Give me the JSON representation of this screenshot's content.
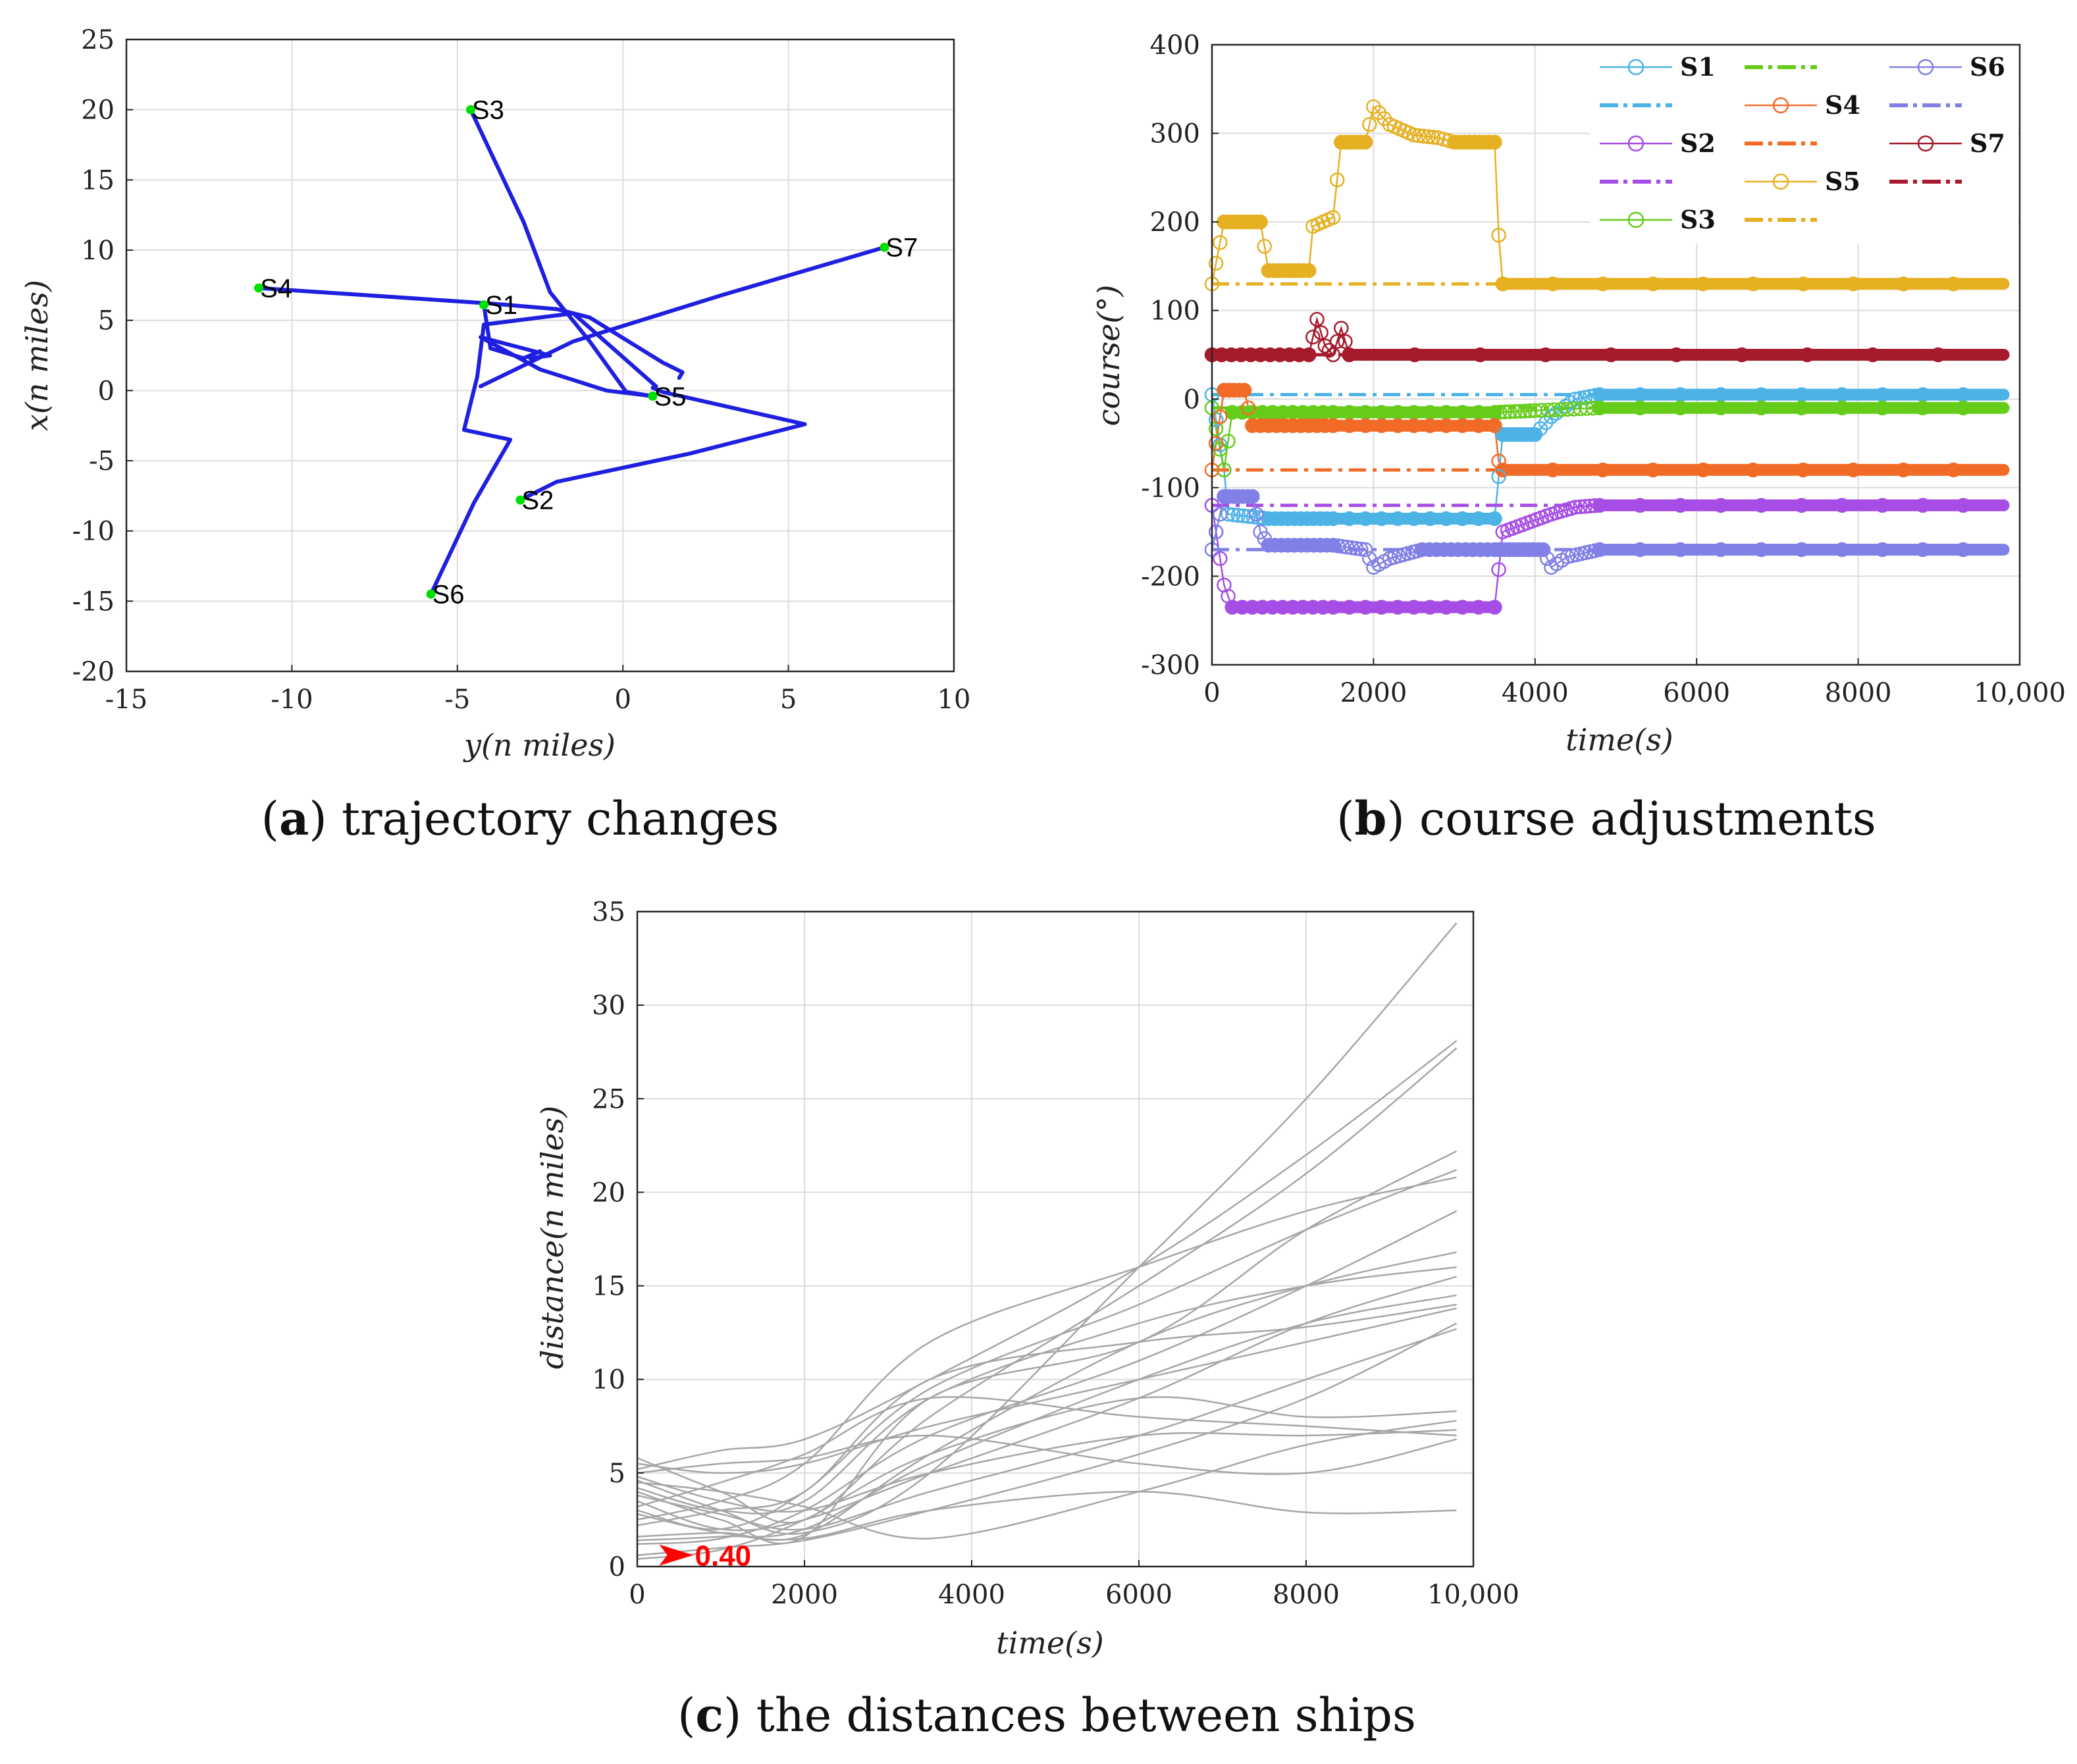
{
  "panels": {
    "a": {
      "caption_letter": "a",
      "caption_text": "trajectory changes",
      "xlabel": "y(n miles)",
      "ylabel": "x(n miles)",
      "xticks": [
        "-15",
        "-10",
        "-5",
        "0",
        "5",
        "10"
      ],
      "yticks": [
        "25",
        "20",
        "15",
        "10",
        "5",
        "0",
        "-5",
        "-10",
        "-15",
        "-20"
      ]
    },
    "b": {
      "caption_letter": "b",
      "caption_text": "course adjustments",
      "xlabel": "time(s)",
      "ylabel": "course(°)",
      "xticks": [
        "0",
        "2000",
        "4000",
        "6000",
        "8000",
        "10,000"
      ],
      "yticks": [
        "400",
        "300",
        "200",
        "100",
        "0",
        "-100",
        "-200",
        "-300"
      ]
    },
    "c": {
      "caption_letter": "c",
      "caption_text": "the distances between ships",
      "xlabel": "time(s)",
      "ylabel": "distance(n miles)",
      "xticks": [
        "0",
        "2000",
        "4000",
        "6000",
        "8000",
        "10,000"
      ],
      "yticks": [
        "35",
        "30",
        "25",
        "20",
        "15",
        "10",
        "5",
        "0"
      ],
      "min_distance_label": "0.40"
    }
  },
  "chart_data": [
    {
      "type": "line",
      "title": "trajectory changes",
      "xlabel": "y(n miles)",
      "ylabel": "x(n miles)",
      "xlim": [
        -15,
        10
      ],
      "ylim": [
        -20,
        25
      ],
      "grid": true,
      "line_color": "#1f1fe0",
      "marker_color": "#00e000",
      "ships": [
        {
          "name": "S1",
          "start": [
            -4.2,
            6.1
          ]
        },
        {
          "name": "S2",
          "start": [
            -3.1,
            -7.8
          ]
        },
        {
          "name": "S3",
          "start": [
            -4.6,
            20.0
          ]
        },
        {
          "name": "S4",
          "start": [
            -11.0,
            7.3
          ]
        },
        {
          "name": "S5",
          "start": [
            0.9,
            -0.4
          ]
        },
        {
          "name": "S6",
          "start": [
            -5.8,
            -14.5
          ]
        },
        {
          "name": "S7",
          "start": [
            7.9,
            10.2
          ]
        }
      ],
      "trajectories": [
        {
          "name": "S1",
          "points": [
            [
              -4.2,
              6.1
            ],
            [
              -4.0,
              3.0
            ],
            [
              -3.0,
              2.3
            ],
            [
              -2.5,
              2.8
            ]
          ]
        },
        {
          "name": "S2",
          "points": [
            [
              -3.1,
              -7.8
            ],
            [
              -2.0,
              -6.5
            ],
            [
              2.0,
              -4.5
            ],
            [
              5.5,
              -2.4
            ],
            [
              1.2,
              -0.1
            ],
            [
              0.9,
              0.2
            ]
          ]
        },
        {
          "name": "S3",
          "points": [
            [
              -4.6,
              20.0
            ],
            [
              -3.0,
              12.0
            ],
            [
              -2.2,
              7.0
            ],
            [
              -1.0,
              3.5
            ],
            [
              0.1,
              -0.1
            ],
            [
              0.9,
              -0.4
            ]
          ]
        },
        {
          "name": "S4",
          "points": [
            [
              -11.0,
              7.3
            ],
            [
              -4.0,
              6.2
            ],
            [
              -2.0,
              5.8
            ],
            [
              -1.0,
              5.2
            ],
            [
              1.2,
              2.0
            ],
            [
              1.8,
              1.3
            ],
            [
              1.7,
              0.9
            ]
          ]
        },
        {
          "name": "S5",
          "points": [
            [
              0.9,
              -0.4
            ],
            [
              -0.5,
              0.0
            ],
            [
              -2.5,
              1.5
            ],
            [
              -4.3,
              3.8
            ],
            [
              -2.2,
              2.5
            ],
            [
              -2.8,
              2.3
            ]
          ]
        },
        {
          "name": "S6",
          "points": [
            [
              -5.8,
              -14.5
            ],
            [
              -4.5,
              -8.0
            ],
            [
              -3.4,
              -3.5
            ],
            [
              -4.8,
              -2.8
            ],
            [
              -4.4,
              1.0
            ],
            [
              -4.2,
              4.7
            ],
            [
              -1.5,
              5.5
            ],
            [
              1.0,
              0.3
            ]
          ]
        },
        {
          "name": "S7",
          "points": [
            [
              7.9,
              10.2
            ],
            [
              3.0,
              6.8
            ],
            [
              -1.5,
              3.5
            ],
            [
              -4.3,
              0.3
            ]
          ]
        }
      ]
    },
    {
      "type": "line",
      "title": "course adjustments",
      "xlabel": "time(s)",
      "ylabel": "course(°)",
      "xlim": [
        0,
        10000
      ],
      "ylim": [
        -300,
        400
      ],
      "grid": true,
      "legend_position": "top-right",
      "series": [
        {
          "name": "S1",
          "color": "#4db3e6",
          "planned": 5,
          "points": [
            [
              0,
              5
            ],
            [
              150,
              -80
            ],
            [
              200,
              -130
            ],
            [
              700,
              -135
            ],
            [
              1500,
              -135
            ],
            [
              3500,
              -135
            ],
            [
              3600,
              -40
            ],
            [
              4000,
              -40
            ],
            [
              4200,
              -20
            ],
            [
              4500,
              0
            ],
            [
              4800,
              5
            ],
            [
              9800,
              5
            ]
          ]
        },
        {
          "name": "S2",
          "color": "#a64de6",
          "planned": -120,
          "points": [
            [
              0,
              -120
            ],
            [
              150,
              -210
            ],
            [
              250,
              -235
            ],
            [
              1500,
              -235
            ],
            [
              3500,
              -235
            ],
            [
              3600,
              -150
            ],
            [
              4200,
              -130
            ],
            [
              4500,
              -122
            ],
            [
              4800,
              -120
            ],
            [
              9800,
              -120
            ]
          ]
        },
        {
          "name": "S3",
          "color": "#66cc1a",
          "planned": -10,
          "points": [
            [
              0,
              -10
            ],
            [
              150,
              -80
            ],
            [
              250,
              -15
            ],
            [
              1500,
              -15
            ],
            [
              3500,
              -15
            ],
            [
              4000,
              -13
            ],
            [
              4800,
              -10
            ],
            [
              9800,
              -10
            ]
          ]
        },
        {
          "name": "S4",
          "color": "#f26b26",
          "planned": -80,
          "points": [
            [
              0,
              -80
            ],
            [
              150,
              10
            ],
            [
              400,
              10
            ],
            [
              500,
              -30
            ],
            [
              1500,
              -30
            ],
            [
              3500,
              -30
            ],
            [
              3550,
              -70
            ],
            [
              3600,
              -80
            ],
            [
              9800,
              -80
            ]
          ]
        },
        {
          "name": "S5",
          "color": "#e6b022",
          "planned": 130,
          "points": [
            [
              0,
              130
            ],
            [
              150,
              200
            ],
            [
              600,
              200
            ],
            [
              700,
              145
            ],
            [
              1200,
              145
            ],
            [
              1250,
              195
            ],
            [
              1500,
              205
            ],
            [
              1600,
              290
            ],
            [
              1900,
              290
            ],
            [
              2000,
              330
            ],
            [
              2200,
              310
            ],
            [
              2500,
              298
            ],
            [
              2800,
              295
            ],
            [
              3000,
              290
            ],
            [
              3500,
              290
            ],
            [
              3550,
              185
            ],
            [
              3600,
              130
            ],
            [
              9800,
              130
            ]
          ]
        },
        {
          "name": "S6",
          "color": "#8080e6",
          "planned": -170,
          "points": [
            [
              0,
              -170
            ],
            [
              150,
              -110
            ],
            [
              500,
              -110
            ],
            [
              600,
              -150
            ],
            [
              700,
              -165
            ],
            [
              1500,
              -165
            ],
            [
              1900,
              -170
            ],
            [
              2000,
              -190
            ],
            [
              2200,
              -180
            ],
            [
              2600,
              -170
            ],
            [
              3500,
              -170
            ],
            [
              4100,
              -170
            ],
            [
              4200,
              -190
            ],
            [
              4400,
              -178
            ],
            [
              4800,
              -170
            ],
            [
              9800,
              -170
            ]
          ]
        },
        {
          "name": "S7",
          "color": "#a61a2b",
          "planned": 50,
          "points": [
            [
              0,
              50
            ],
            [
              1200,
              50
            ],
            [
              1300,
              90
            ],
            [
              1400,
              60
            ],
            [
              1500,
              50
            ],
            [
              1600,
              80
            ],
            [
              1700,
              50
            ],
            [
              9800,
              50
            ]
          ]
        }
      ]
    },
    {
      "type": "line",
      "title": "the distances between ships",
      "xlabel": "time(s)",
      "ylabel": "distance(n miles)",
      "xlim": [
        0,
        10000
      ],
      "ylim": [
        0,
        35
      ],
      "grid": true,
      "line_color": "#a6a6a6",
      "annotation": {
        "label": "0.40",
        "x": 500,
        "y": 0.4,
        "color": "#ff0000"
      },
      "series_times": [
        0,
        1000,
        2000,
        3500,
        6000,
        8000,
        9800
      ],
      "series": [
        [
          4.6,
          3.0,
          1.8,
          5.0,
          16.0,
          25.0,
          34.4
        ],
        [
          5.2,
          6.2,
          6.8,
          10.0,
          16.0,
          22.0,
          28.1
        ],
        [
          5.8,
          4.0,
          2.5,
          8.0,
          15.0,
          21.0,
          27.7
        ],
        [
          4.0,
          2.5,
          1.6,
          9.0,
          12.0,
          18.0,
          22.2
        ],
        [
          3.0,
          2.0,
          4.0,
          9.5,
          14.0,
          18.0,
          21.2
        ],
        [
          2.5,
          3.5,
          5.5,
          12.0,
          16.0,
          19.0,
          20.8
        ],
        [
          1.2,
          1.5,
          3.0,
          7.0,
          11.0,
          15.0,
          19.0
        ],
        [
          1.6,
          1.8,
          1.7,
          6.0,
          12.0,
          15.0,
          16.8
        ],
        [
          4.2,
          3.0,
          3.5,
          9.0,
          13.0,
          15.0,
          16.0
        ],
        [
          3.5,
          2.0,
          2.5,
          5.0,
          9.0,
          13.0,
          15.5
        ],
        [
          1.4,
          1.6,
          2.0,
          5.5,
          10.0,
          13.0,
          14.5
        ],
        [
          2.2,
          3.0,
          4.0,
          10.0,
          12.0,
          12.8,
          14.0
        ],
        [
          5.5,
          5.0,
          5.5,
          7.5,
          10.0,
          12.0,
          13.8
        ],
        [
          3.8,
          2.8,
          2.0,
          4.0,
          7.0,
          10.0,
          12.7
        ],
        [
          0.4,
          0.9,
          2.5,
          6.0,
          9.0,
          8.0,
          8.3
        ],
        [
          4.8,
          3.5,
          3.0,
          5.0,
          7.0,
          7.0,
          7.3
        ],
        [
          5.0,
          5.5,
          5.8,
          7.0,
          5.5,
          5.0,
          6.8
        ],
        [
          2.8,
          1.8,
          1.5,
          3.0,
          4.0,
          2.9,
          3.0
        ],
        [
          4.5,
          4.0,
          3.2,
          1.5,
          4.0,
          6.5,
          7.8
        ],
        [
          3.2,
          4.5,
          6.0,
          9.0,
          8.0,
          7.5,
          7.0
        ],
        [
          0.6,
          1.0,
          1.4,
          3.0,
          6.0,
          9.0,
          13.0
        ]
      ]
    }
  ]
}
